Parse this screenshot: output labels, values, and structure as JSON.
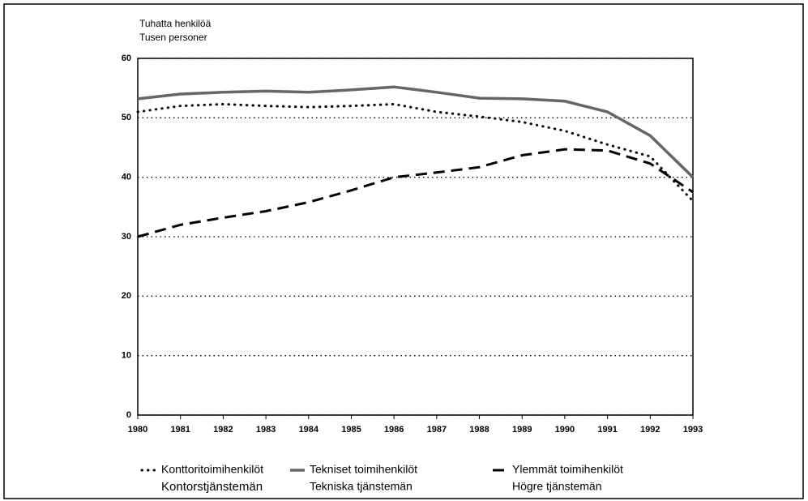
{
  "chart_data": {
    "type": "line",
    "y_label": [
      "Tuhatta henkilöä",
      "Tusen personer"
    ],
    "x": [
      1980,
      1981,
      1982,
      1983,
      1984,
      1985,
      1986,
      1987,
      1988,
      1989,
      1990,
      1991,
      1992,
      1993
    ],
    "xlim": [
      1980,
      1993
    ],
    "xticks": [
      1980,
      1981,
      1982,
      1983,
      1984,
      1985,
      1986,
      1987,
      1988,
      1989,
      1990,
      1991,
      1992,
      1993
    ],
    "ylim": [
      0,
      60
    ],
    "yticks": [
      0,
      10,
      20,
      30,
      40,
      50,
      60
    ],
    "grid": true,
    "legend": "bottom",
    "series": [
      {
        "name": "Konttoritoimihenkilöt",
        "name_sv": "Kontorstjänstemän",
        "color": "#000000",
        "style": "dotted",
        "values": [
          51,
          52,
          52.3,
          52,
          51.8,
          52,
          52.3,
          51,
          50.2,
          49.3,
          47.8,
          45.5,
          43.5,
          36
        ]
      },
      {
        "name": "Tekniset toimihenkilöt",
        "name_sv": "Tekniska tjänstemän",
        "color": "#666666",
        "style": "solid",
        "values": [
          53.2,
          54,
          54.3,
          54.5,
          54.3,
          54.7,
          55.2,
          54.3,
          53.3,
          53.2,
          52.8,
          51,
          47,
          40
        ]
      },
      {
        "name": "Ylemmät toimihenkilöt",
        "name_sv": "Högre tjänstemän",
        "color": "#000000",
        "style": "dashed",
        "values": [
          30,
          32,
          33.2,
          34.3,
          35.8,
          37.8,
          40,
          40.8,
          41.7,
          43.7,
          44.7,
          44.5,
          42.3,
          37.5
        ]
      }
    ]
  }
}
